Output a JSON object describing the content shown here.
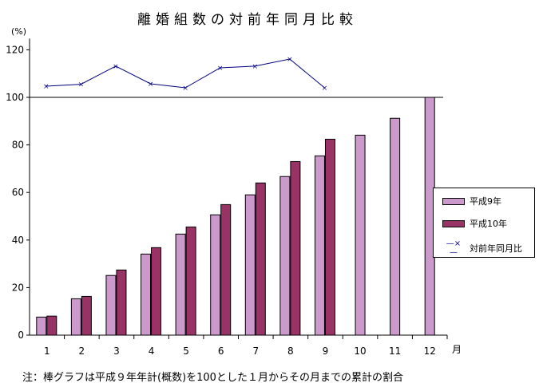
{
  "chart_data": {
    "type": "bar",
    "title": "離婚組数の対前年同月比較",
    "ylabel": "(%)",
    "xlabel": "月",
    "ylim": [
      0,
      125
    ],
    "yticks": [
      0,
      20,
      40,
      60,
      80,
      100,
      120
    ],
    "categories": [
      "1",
      "2",
      "3",
      "4",
      "5",
      "6",
      "7",
      "8",
      "9",
      "10",
      "11",
      "12"
    ],
    "series": [
      {
        "name": "平成9年",
        "type": "bar",
        "color": "#cc99cc",
        "values": [
          7.6,
          15.3,
          25.1,
          34.1,
          42.5,
          50.6,
          59.0,
          66.7,
          75.4,
          84.1,
          91.2,
          100
        ]
      },
      {
        "name": "平成10年",
        "type": "bar",
        "color": "#993366",
        "values": [
          8.0,
          16.3,
          27.4,
          36.8,
          45.5,
          54.9,
          64.0,
          73.0,
          82.4,
          null,
          null,
          null
        ]
      },
      {
        "name": "対前年同月比",
        "type": "line",
        "color": "#000080",
        "marker": "x",
        "values": [
          105.1,
          105.9,
          113.6,
          106.1,
          104.4,
          112.9,
          113.6,
          116.6,
          104.4,
          null,
          null,
          null
        ]
      }
    ],
    "reference_line": 100,
    "legend": "right",
    "grid": false,
    "note": "注：棒グラフは平成９年年計(概数)を100とした１月からその月までの累計の割合"
  }
}
